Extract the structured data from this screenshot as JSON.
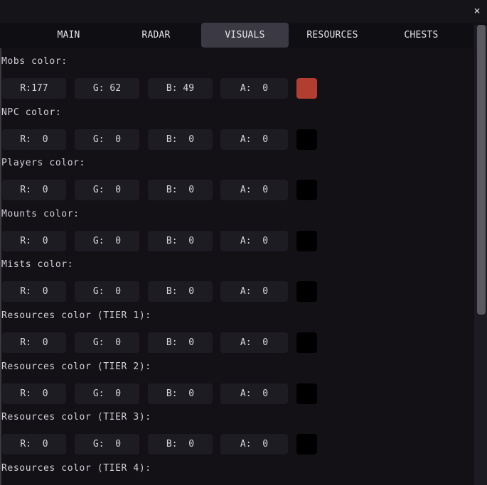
{
  "window": {
    "close_label": "×"
  },
  "tabs": [
    {
      "label": "MAIN",
      "active": false
    },
    {
      "label": "RADAR",
      "active": false
    },
    {
      "label": "VISUALS",
      "active": true
    },
    {
      "label": "RESOURCES",
      "active": false
    },
    {
      "label": "CHESTS",
      "active": false
    }
  ],
  "sections": [
    {
      "label": "Mobs color:",
      "r": "R:177",
      "g": "G: 62",
      "b": "B: 49",
      "a": "A:  0",
      "swatch": "#b13e31"
    },
    {
      "label": "NPC color:",
      "r": "R:  0",
      "g": "G:  0",
      "b": "B:  0",
      "a": "A:  0",
      "swatch": "#000000"
    },
    {
      "label": "Players color:",
      "r": "R:  0",
      "g": "G:  0",
      "b": "B:  0",
      "a": "A:  0",
      "swatch": "#000000"
    },
    {
      "label": "Mounts color:",
      "r": "R:  0",
      "g": "G:  0",
      "b": "B:  0",
      "a": "A:  0",
      "swatch": "#000000"
    },
    {
      "label": "Mists color:",
      "r": "R:  0",
      "g": "G:  0",
      "b": "B:  0",
      "a": "A:  0",
      "swatch": "#000000"
    },
    {
      "label": "Resources color (TIER 1):",
      "r": "R:  0",
      "g": "G:  0",
      "b": "B:  0",
      "a": "A:  0",
      "swatch": "#000000"
    },
    {
      "label": "Resources color (TIER 2):",
      "r": "R:  0",
      "g": "G:  0",
      "b": "B:  0",
      "a": "A:  0",
      "swatch": "#000000"
    },
    {
      "label": "Resources color (TIER 3):",
      "r": "R:  0",
      "g": "G:  0",
      "b": "B:  0",
      "a": "A:  0",
      "swatch": "#000000"
    },
    {
      "label": "Resources color (TIER 4):"
    }
  ]
}
